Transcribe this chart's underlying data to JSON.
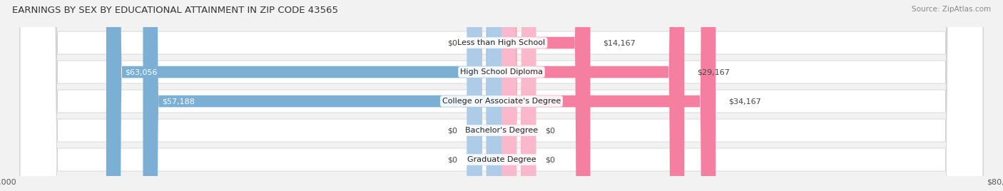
{
  "title": "EARNINGS BY SEX BY EDUCATIONAL ATTAINMENT IN ZIP CODE 43565",
  "source": "Source: ZipAtlas.com",
  "categories": [
    "Less than High School",
    "High School Diploma",
    "College or Associate's Degree",
    "Bachelor's Degree",
    "Graduate Degree"
  ],
  "male_values": [
    0,
    63056,
    57188,
    0,
    0
  ],
  "female_values": [
    14167,
    29167,
    34167,
    0,
    0
  ],
  "male_labels": [
    "$0",
    "$63,056",
    "$57,188",
    "$0",
    "$0"
  ],
  "female_labels": [
    "$14,167",
    "$29,167",
    "$34,167",
    "$0",
    "$0"
  ],
  "male_color": "#7bafd4",
  "female_color": "#f47fa0",
  "male_color_light": "#aecce8",
  "female_color_light": "#f9b8cc",
  "max_value": 80000,
  "bg_color": "#f2f2f2",
  "row_bg_color": "#e6e6e6",
  "title_fontsize": 9.5,
  "label_fontsize": 8,
  "cat_fontsize": 8,
  "axis_label_fontsize": 8,
  "stub_value": 5500
}
